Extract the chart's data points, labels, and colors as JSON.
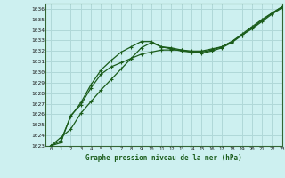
{
  "title": "Graphe pression niveau de la mer (hPa)",
  "bg_color": "#cdf0f0",
  "grid_color": "#b0d8d8",
  "line_color": "#1a5c1a",
  "marker_color": "#1a5c1a",
  "xlim": [
    -0.5,
    23
  ],
  "ylim": [
    1023,
    1036.5
  ],
  "xticks": [
    0,
    1,
    2,
    3,
    4,
    5,
    6,
    7,
    8,
    9,
    10,
    11,
    12,
    13,
    14,
    15,
    16,
    17,
    18,
    19,
    20,
    21,
    22,
    23
  ],
  "yticks": [
    1023,
    1024,
    1025,
    1026,
    1027,
    1028,
    1029,
    1030,
    1031,
    1032,
    1033,
    1034,
    1035,
    1036
  ],
  "series1": [
    1023.0,
    1023.8,
    1024.6,
    1026.1,
    1027.2,
    1028.3,
    1029.3,
    1030.3,
    1031.3,
    1032.3,
    1032.8,
    1032.4,
    1032.3,
    1032.1,
    1031.9,
    1031.8,
    1032.0,
    1032.3,
    1032.8,
    1033.5,
    1034.2,
    1034.9,
    1035.6,
    1036.2
  ],
  "series2": [
    1023.0,
    1023.5,
    1025.8,
    1027.1,
    1028.8,
    1030.2,
    1031.1,
    1031.9,
    1032.4,
    1032.9,
    1032.9,
    1032.4,
    1032.2,
    1032.0,
    1031.9,
    1031.9,
    1032.1,
    1032.4,
    1032.9,
    1033.6,
    1034.3,
    1035.0,
    1035.6,
    1036.2
  ],
  "series3": [
    1023.0,
    1023.3,
    1025.9,
    1026.9,
    1028.5,
    1029.8,
    1030.5,
    1030.9,
    1031.3,
    1031.7,
    1031.9,
    1032.1,
    1032.1,
    1032.1,
    1032.0,
    1032.0,
    1032.2,
    1032.4,
    1032.9,
    1033.5,
    1034.1,
    1034.8,
    1035.5,
    1036.1
  ]
}
